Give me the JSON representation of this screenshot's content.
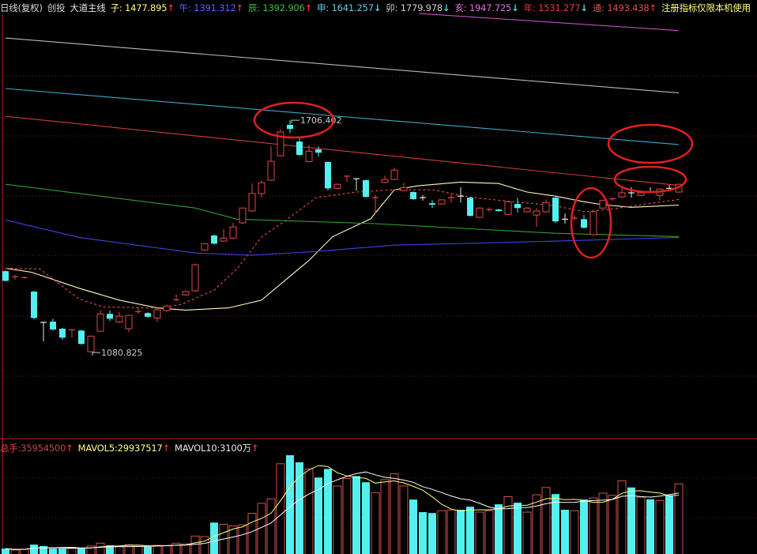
{
  "header": {
    "period": "日线(复权)",
    "symbol": "创投",
    "indicator": "大道主线",
    "lines": [
      {
        "key": "子",
        "value": "1477.895",
        "dir": "up",
        "color": "#ffff80"
      },
      {
        "key": "午",
        "value": "1391.312",
        "dir": "up",
        "color": "#6060ff"
      },
      {
        "key": "辰",
        "value": "1392.906",
        "dir": "up",
        "color": "#40c040"
      },
      {
        "key": "申",
        "value": "1641.257",
        "dir": "down",
        "color": "#60c8e8"
      },
      {
        "key": "卯",
        "value": "1779.978",
        "dir": "down",
        "color": "#d0d0d0"
      },
      {
        "key": "亥",
        "value": "1947.725",
        "dir": "down",
        "color": "#e070e0"
      },
      {
        "key": "年",
        "value": "1531.277",
        "dir": "down",
        "color": "#e03c3c"
      },
      {
        "key": "通",
        "value": "1493.438",
        "dir": "up",
        "color": "#e05050"
      }
    ],
    "notice": "注册指标仅限本机使用",
    "arrow_up": "↑",
    "arrow_down": "↓"
  },
  "volume_header": {
    "total_label": "总手",
    "total_value": "35954500",
    "mavol5_label": "MAVOL5",
    "mavol5_value": "29937517",
    "mavol10_label": "MAVOL10",
    "mavol10_value": "3100万"
  },
  "colors": {
    "up": "#e04848",
    "down": "#54f0f0",
    "doji": "#e8e8e8",
    "grid": "#6a1c1c",
    "frame": "#b02020",
    "annotation": "#e02020"
  },
  "chart_data": [
    {
      "type": "candlestick",
      "ylim": [
        849,
        1992
      ],
      "ohlc_fields": [
        "open",
        "high",
        "low",
        "close"
      ],
      "candles": [
        [
          1300,
          1302,
          1272,
          1274
        ],
        [
          1283,
          1290,
          1277,
          1285
        ],
        [
          1281,
          1285,
          1279,
          1283
        ],
        [
          1245,
          1247,
          1170,
          1174
        ],
        [
          1162,
          1164,
          1111,
          1162
        ],
        [
          1164,
          1172,
          1141,
          1143
        ],
        [
          1145,
          1147,
          1115,
          1121
        ],
        [
          1141,
          1144,
          1121,
          1142
        ],
        [
          1140,
          1142,
          1102,
          1104
        ],
        [
          1083,
          1126,
          1080.825,
          1125
        ],
        [
          1138,
          1196,
          1137,
          1185
        ],
        [
          1185,
          1194,
          1166,
          1172
        ],
        [
          1163,
          1190,
          1160,
          1179
        ],
        [
          1145,
          1183,
          1136,
          1181
        ],
        [
          1190,
          1202,
          1185,
          1191
        ],
        [
          1187,
          1190,
          1175,
          1177
        ],
        [
          1174,
          1198,
          1164,
          1196
        ],
        [
          1194,
          1210,
          1190,
          1206
        ],
        [
          1222,
          1238,
          1220,
          1223
        ],
        [
          1236,
          1248,
          1234,
          1245
        ],
        [
          1247,
          1320,
          1245,
          1317
        ],
        [
          1357,
          1376,
          1355,
          1374
        ],
        [
          1396,
          1398,
          1372,
          1374
        ],
        [
          1381,
          1413,
          1379,
          1389
        ],
        [
          1389,
          1430,
          1387,
          1419
        ],
        [
          1430,
          1470,
          1428,
          1470
        ],
        [
          1462,
          1536,
          1460,
          1509
        ],
        [
          1509,
          1545,
          1498,
          1538
        ],
        [
          1545,
          1636,
          1543,
          1596
        ],
        [
          1611,
          1683,
          1609,
          1675
        ],
        [
          1694,
          1706.402,
          1672,
          1683
        ],
        [
          1649,
          1658,
          1611,
          1613
        ],
        [
          1595,
          1640,
          1593,
          1623
        ],
        [
          1628,
          1636,
          1609,
          1619
        ],
        [
          1594,
          1596,
          1517,
          1523
        ],
        [
          1523,
          1536,
          1521,
          1534
        ],
        [
          1555,
          1557,
          1540,
          1556
        ],
        [
          1549,
          1551,
          1517,
          1549
        ],
        [
          1545,
          1547,
          1498,
          1500
        ],
        [
          1497,
          1506,
          1455,
          1498
        ],
        [
          1539,
          1557,
          1537,
          1547
        ],
        [
          1547,
          1579,
          1545,
          1572
        ],
        [
          1517,
          1538,
          1515,
          1525
        ],
        [
          1513,
          1515,
          1492,
          1494
        ],
        [
          1498,
          1505,
          1490,
          1498
        ],
        [
          1483,
          1491,
          1470,
          1479
        ],
        [
          1481,
          1494,
          1479,
          1492
        ],
        [
          1497,
          1509,
          1485,
          1498
        ],
        [
          1502,
          1526,
          1485,
          1502
        ],
        [
          1498,
          1500,
          1447,
          1449
        ],
        [
          1445,
          1472,
          1443,
          1470
        ],
        [
          1465,
          1472,
          1460,
          1466
        ],
        [
          1466,
          1468,
          1460,
          1462
        ],
        [
          1453,
          1489,
          1451,
          1487
        ],
        [
          1481,
          1498,
          1458,
          1470
        ],
        [
          1460,
          1472,
          1458,
          1470
        ],
        [
          1451,
          1470,
          1419,
          1462
        ],
        [
          1460,
          1494,
          1458,
          1485
        ],
        [
          1498,
          1500,
          1430,
          1434
        ],
        [
          1440,
          1455,
          1428,
          1440
        ],
        [
          1442,
          1450,
          1436,
          1443
        ],
        [
          1440,
          1451,
          1415,
          1417
        ],
        [
          1398,
          1462,
          1396,
          1460
        ],
        [
          1470,
          1492,
          1468,
          1491
        ],
        [
          1494,
          1497,
          1490,
          1495
        ],
        [
          1500,
          1530,
          1498,
          1511
        ],
        [
          1511,
          1526,
          1498,
          1511
        ],
        [
          1504,
          1513,
          1502,
          1511
        ],
        [
          1513,
          1526,
          1511,
          1513
        ],
        [
          1504,
          1523,
          1491,
          1521
        ],
        [
          1523,
          1532,
          1521,
          1523
        ],
        [
          1513,
          1536,
          1511,
          1534
        ]
      ],
      "annotations": [
        {
          "text": "1706.402",
          "candle": 30,
          "price": 1706.402
        },
        {
          "text": "1080.825",
          "candle": 9,
          "price": 1080.825
        }
      ],
      "lines": [
        {
          "name": "子",
          "color": "#fff8c0",
          "dashed": false,
          "points": [
            [
              0,
              1308
            ],
            [
              2.75,
              1297
            ],
            [
              7.75,
              1254
            ],
            [
              12,
              1222
            ],
            [
              16,
              1201
            ],
            [
              19,
              1195
            ],
            [
              23.5,
              1201
            ],
            [
              27,
              1222
            ],
            [
              29,
              1265
            ],
            [
              32,
              1329
            ],
            [
              34.5,
              1393
            ],
            [
              38.5,
              1441
            ],
            [
              41,
              1519
            ],
            [
              43.5,
              1530
            ],
            [
              48,
              1540
            ],
            [
              52,
              1536
            ],
            [
              55,
              1513
            ],
            [
              58,
              1502
            ],
            [
              61,
              1487
            ],
            [
              63,
              1479
            ],
            [
              66,
              1472
            ],
            [
              68.5,
              1475
            ],
            [
              71,
              1478
            ]
          ]
        },
        {
          "name": "通",
          "color": "#e05050",
          "dashed": true,
          "points": [
            [
              0,
              1308
            ],
            [
              3.6,
              1306
            ],
            [
              7.75,
              1225
            ],
            [
              10.25,
              1204
            ],
            [
              16,
              1200
            ],
            [
              18.6,
              1211
            ],
            [
              22,
              1249
            ],
            [
              24.4,
              1306
            ],
            [
              27,
              1392
            ],
            [
              29.4,
              1434
            ],
            [
              32.75,
              1498
            ],
            [
              37,
              1513
            ],
            [
              41,
              1519
            ],
            [
              45,
              1519
            ],
            [
              49.4,
              1498
            ],
            [
              53.6,
              1487
            ],
            [
              57.75,
              1477
            ],
            [
              61,
              1460
            ],
            [
              63.6,
              1466
            ],
            [
              66,
              1475
            ],
            [
              71,
              1493
            ]
          ]
        },
        {
          "name": "午",
          "color": "#4040e0",
          "dashed": false,
          "points": [
            [
              0,
              1438
            ],
            [
              7.75,
              1391
            ],
            [
              20,
              1349
            ],
            [
              26,
              1343
            ],
            [
              32.75,
              1353
            ],
            [
              41,
              1370
            ],
            [
              58,
              1381
            ],
            [
              71,
              1391
            ]
          ]
        },
        {
          "name": "辰",
          "color": "#30a030",
          "dashed": false,
          "points": [
            [
              0,
              1534
            ],
            [
              20,
              1470
            ],
            [
              24.4,
              1440
            ],
            [
              39,
              1428
            ],
            [
              58,
              1402
            ],
            [
              71,
              1393
            ]
          ]
        },
        {
          "name": "年",
          "color": "#d03a3a",
          "dashed": false,
          "points": [
            [
              0,
              1717
            ],
            [
              71,
              1531
            ]
          ]
        },
        {
          "name": "申",
          "color": "#40a8c8",
          "dashed": false,
          "points": [
            [
              0,
              1792
            ],
            [
              71,
              1641
            ]
          ]
        },
        {
          "name": "卯",
          "color": "#b8b8b8",
          "dashed": false,
          "points": [
            [
              0,
              1928
            ],
            [
              71,
              1780
            ]
          ]
        },
        {
          "name": "亥",
          "color": "#c050c0",
          "dashed": false,
          "points": [
            [
              43.6,
              1994
            ],
            [
              71,
              1948
            ]
          ]
        }
      ]
    },
    {
      "type": "bar",
      "unit": "million shares (approx.)",
      "ma_periods": [
        5,
        10
      ],
      "ma_colors": [
        "#ffff80",
        "#ffffff"
      ],
      "values": [
        8.6,
        8.0,
        8.3,
        10.3,
        9.7,
        8.6,
        8.6,
        8.6,
        8.9,
        9.7,
        10.9,
        10.0,
        9.4,
        10.2,
        10.0,
        9.4,
        10.0,
        9.8,
        10.9,
        10.6,
        13.9,
        13.7,
        19.6,
        18.9,
        18.2,
        18.6,
        23.5,
        27.7,
        29.6,
        44.4,
        48.0,
        45.0,
        42.2,
        38.6,
        42.2,
        35.0,
        38.2,
        39.2,
        36.6,
        32.2,
        37.7,
        40.2,
        35.0,
        29.3,
        24.0,
        23.6,
        24.6,
        24.9,
        25.0,
        26.3,
        24.0,
        24.6,
        27.3,
        30.5,
        28.0,
        24.0,
        31.3,
        34.4,
        31.6,
        25.0,
        24.6,
        29.3,
        30.0,
        32.0,
        31.1,
        37.2,
        34.4,
        30.3,
        29.4,
        28.9,
        31.1,
        35.95
      ]
    }
  ]
}
